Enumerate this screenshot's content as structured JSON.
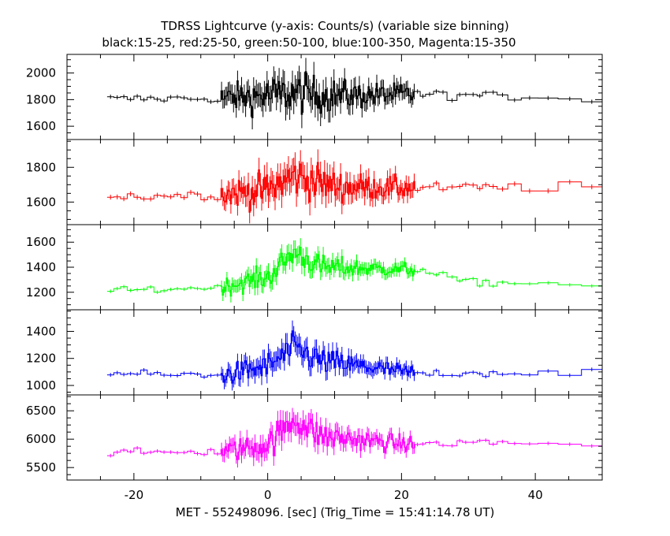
{
  "title": "TDRSS Lightcurve (y-axis: Counts/s) (variable size binning)",
  "subtitle": "black:15-25, red:25-50, green:50-100, blue:100-350, Magenta:15-350",
  "xlabel": "MET - 552498096. [sec] (Trig_Time = 15:41:14.78 UT)",
  "chart_data": {
    "type": "line",
    "title": "TDRSS Lightcurve (y-axis: Counts/s) (variable size binning)",
    "subtitle": "black:15-25, red:25-50, green:50-100, blue:100-350, Magenta:15-350",
    "xlabel": "MET - 552498096. [sec] (Trig_Time = 15:41:14.78 UT)",
    "ylabel": "",
    "xlim": [
      -30,
      50
    ],
    "xticks": [
      -20,
      0,
      20,
      40
    ],
    "x_tick_labels": [
      "-20",
      "0",
      "20",
      "40"
    ],
    "grid": false,
    "step_style": true,
    "panels": [
      {
        "name": "black:15-25",
        "color": "#000000",
        "ylim": [
          1500,
          2140
        ],
        "yticks": [
          1600,
          1800,
          2000
        ],
        "y_tick_labels": [
          "1600",
          "1800",
          "2000"
        ],
        "baseline": 1805,
        "pre_noise": 45,
        "burst_noise": 190,
        "tail_level": 1840,
        "profile": [
          [
            -24,
            1805
          ],
          [
            -7,
            1810
          ],
          [
            0,
            1830
          ],
          [
            4,
            1850
          ],
          [
            10,
            1830
          ],
          [
            22,
            1840
          ],
          [
            50,
            1810
          ]
        ]
      },
      {
        "name": "red:25-50",
        "color": "#ff0000",
        "ylim": [
          1470,
          1960
        ],
        "yticks": [
          1600,
          1800
        ],
        "y_tick_labels": [
          "1600",
          "1800"
        ],
        "baseline": 1635,
        "pre_noise": 40,
        "burst_noise": 145,
        "tail_level": 1720,
        "profile": [
          [
            -24,
            1630
          ],
          [
            -7,
            1645
          ],
          [
            0,
            1670
          ],
          [
            4,
            1750
          ],
          [
            10,
            1690
          ],
          [
            22,
            1680
          ],
          [
            50,
            1690
          ]
        ]
      },
      {
        "name": "green:50-100",
        "color": "#00ff00",
        "ylim": [
          1060,
          1740
        ],
        "yticks": [
          1200,
          1400,
          1600
        ],
        "y_tick_labels": [
          "1200",
          "1400",
          "1600"
        ],
        "baseline": 1230,
        "pre_noise": 40,
        "burst_noise": 130,
        "tail_level": 1270,
        "profile": [
          [
            -24,
            1210
          ],
          [
            -7,
            1240
          ],
          [
            0,
            1320
          ],
          [
            4,
            1520
          ],
          [
            8,
            1400
          ],
          [
            22,
            1380
          ],
          [
            30,
            1280
          ],
          [
            50,
            1260
          ]
        ]
      },
      {
        "name": "blue:100-350",
        "color": "#0000ff",
        "ylim": [
          930,
          1560
        ],
        "yticks": [
          1000,
          1200,
          1400
        ],
        "y_tick_labels": [
          "1000",
          "1200",
          "1400"
        ],
        "baseline": 1080,
        "pre_noise": 40,
        "burst_noise": 140,
        "tail_level": 1110,
        "profile": [
          [
            -24,
            1090
          ],
          [
            -7,
            1070
          ],
          [
            0,
            1140
          ],
          [
            4,
            1280
          ],
          [
            8,
            1180
          ],
          [
            22,
            1090
          ],
          [
            50,
            1100
          ]
        ]
      },
      {
        "name": "Magenta:15-350",
        "color": "#ff00ff",
        "ylim": [
          5280,
          6780
        ],
        "yticks": [
          5500,
          6000,
          6500
        ],
        "y_tick_labels": [
          "5500",
          "6000",
          "6500"
        ],
        "baseline": 5780,
        "pre_noise": 90,
        "burst_noise": 340,
        "tail_level": 5980,
        "profile": [
          [
            -24,
            5760
          ],
          [
            -7,
            5780
          ],
          [
            0,
            5900
          ],
          [
            4,
            6350
          ],
          [
            8,
            6050
          ],
          [
            22,
            5900
          ],
          [
            30,
            5950
          ],
          [
            50,
            5900
          ]
        ]
      }
    ],
    "bin_edges": {
      "pre": [
        -24,
        -7
      ],
      "burst": [
        -7,
        22
      ],
      "post": [
        22,
        50
      ]
    }
  }
}
